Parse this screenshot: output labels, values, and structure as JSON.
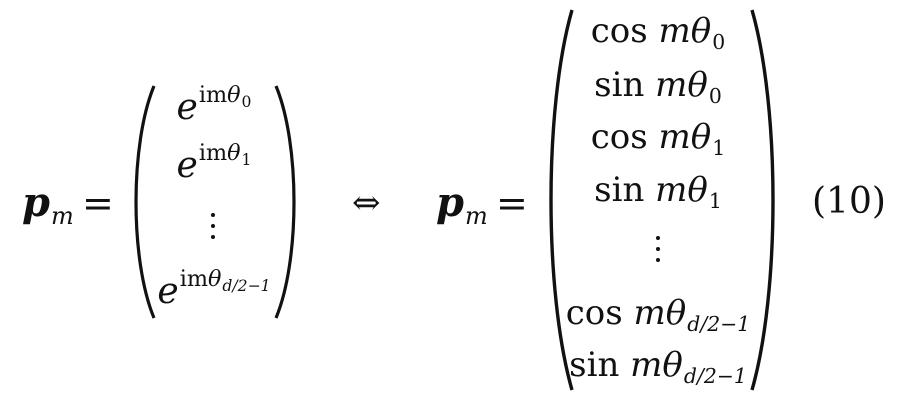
{
  "equation": {
    "left": {
      "lhs_vector": "p",
      "lhs_subscript": "m",
      "equals": "=",
      "entries": [
        {
          "base": "e",
          "sup_prefix": "im",
          "sup_var": "θ",
          "sup_sub": "0"
        },
        {
          "base": "e",
          "sup_prefix": "im",
          "sup_var": "θ",
          "sup_sub": "1"
        },
        {
          "vdots": "⋮"
        },
        {
          "base": "e",
          "sup_prefix": "im",
          "sup_var": "θ",
          "sup_sub": "d/2−1"
        }
      ]
    },
    "equivalence": "⇔",
    "right": {
      "lhs_vector": "p",
      "lhs_subscript": "m",
      "equals": "=",
      "entries": [
        {
          "fn": "cos",
          "var": "m",
          "theta": "θ",
          "sub": "0"
        },
        {
          "fn": "sin",
          "var": "m",
          "theta": "θ",
          "sub": "0"
        },
        {
          "fn": "cos",
          "var": "m",
          "theta": "θ",
          "sub": "1"
        },
        {
          "fn": "sin",
          "var": "m",
          "theta": "θ",
          "sub": "1"
        },
        {
          "vdots": "⋮"
        },
        {
          "fn": "cos",
          "var": "m",
          "theta": "θ",
          "sub": "d/2−1"
        },
        {
          "fn": "sin",
          "var": "m",
          "theta": "θ",
          "sub": "d/2−1"
        }
      ]
    },
    "number": "(10)"
  }
}
